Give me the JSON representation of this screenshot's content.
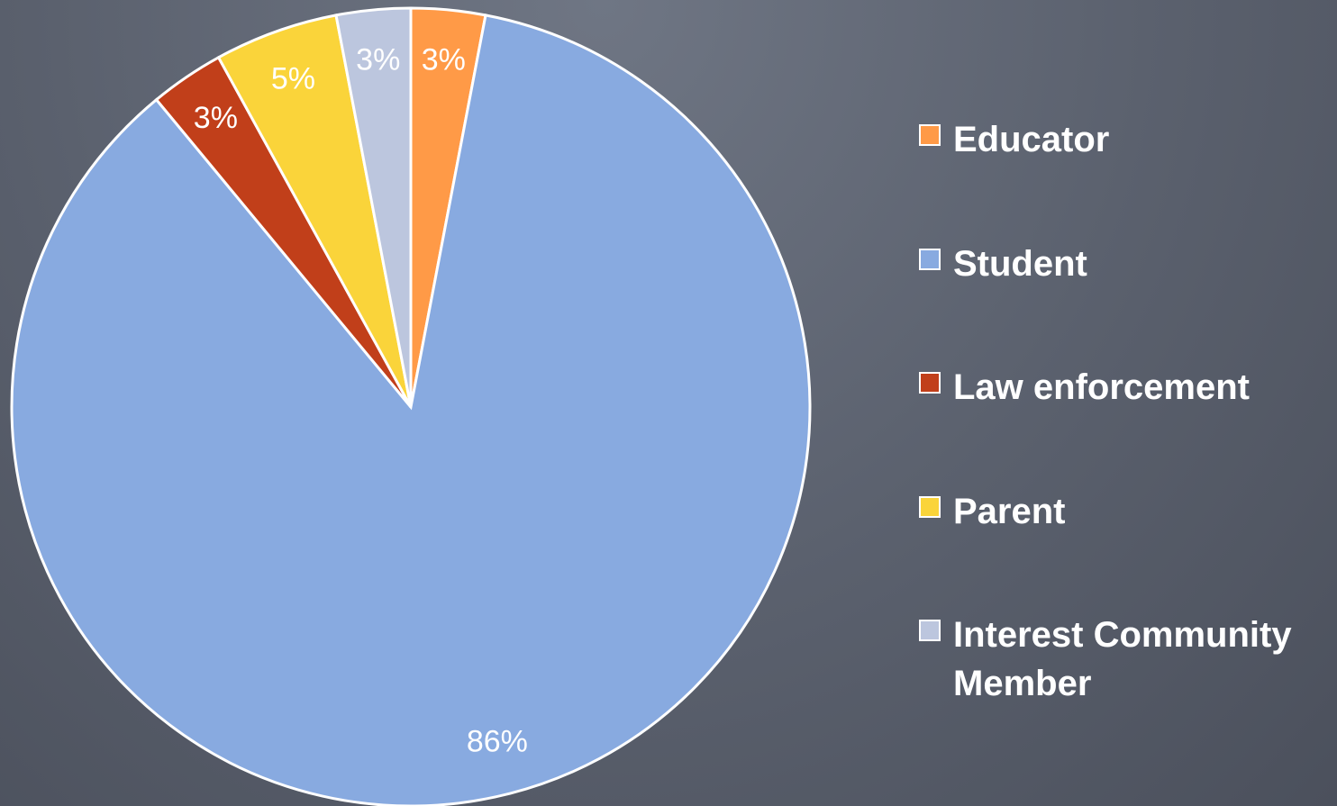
{
  "chart_data": {
    "type": "pie",
    "categories": [
      "Educator",
      "Student",
      "Law enforcement",
      "Parent",
      "Interest Community Member"
    ],
    "values": [
      3,
      86,
      3,
      5,
      3
    ],
    "value_labels": [
      "3%",
      "86%",
      "3%",
      "5%",
      "3%"
    ],
    "colors": [
      "#ff9a47",
      "#88aae0",
      "#c13f1a",
      "#fad43a",
      "#bcc6de"
    ],
    "legend": "right"
  }
}
